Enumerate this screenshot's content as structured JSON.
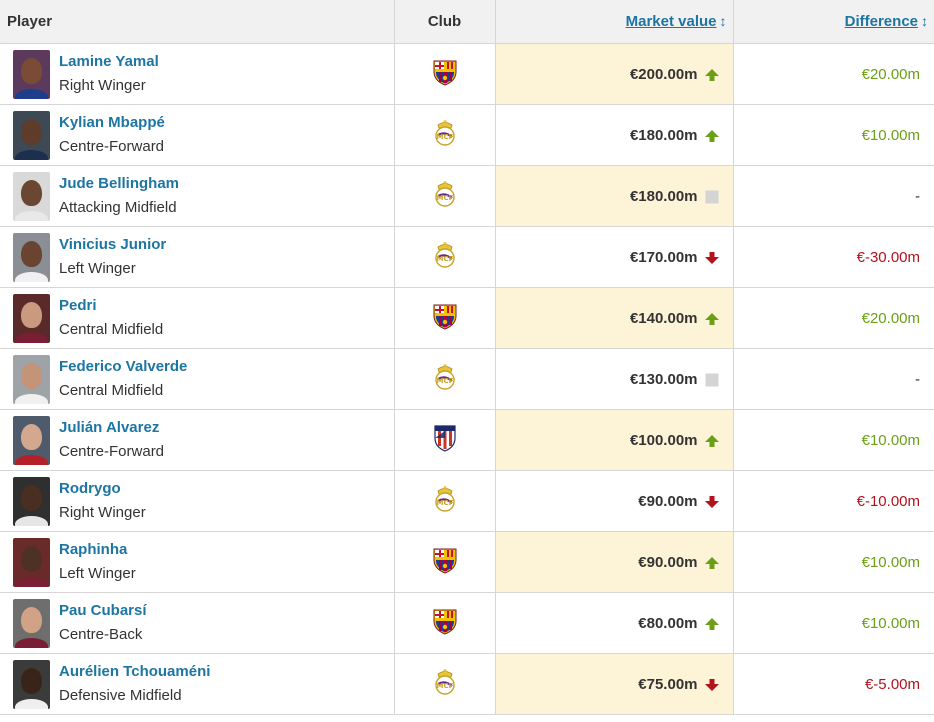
{
  "header": {
    "player": "Player",
    "club": "Club",
    "market_value": "Market value",
    "difference": "Difference",
    "sort_icon": "↕"
  },
  "colors": {
    "link": "#1d75a3",
    "positive": "#6b9f17",
    "negative": "#b3121c",
    "highlight": "#fdf4d8"
  },
  "rows": [
    {
      "name": "Lamine Yamal",
      "position": "Right Winger",
      "club": "barcelona-crest-icon",
      "value": "€200.00m",
      "trend": "up",
      "difference": "€20.00m"
    },
    {
      "name": "Kylian Mbappé",
      "position": "Centre-Forward",
      "club": "real-madrid-crest-icon",
      "value": "€180.00m",
      "trend": "up",
      "difference": "€10.00m"
    },
    {
      "name": "Jude Bellingham",
      "position": "Attacking Midfield",
      "club": "real-madrid-crest-icon",
      "value": "€180.00m",
      "trend": "same",
      "difference": "-"
    },
    {
      "name": "Vinicius Junior",
      "position": "Left Winger",
      "club": "real-madrid-crest-icon",
      "value": "€170.00m",
      "trend": "down",
      "difference": "€-30.00m"
    },
    {
      "name": "Pedri",
      "position": "Central Midfield",
      "club": "barcelona-crest-icon",
      "value": "€140.00m",
      "trend": "up",
      "difference": "€20.00m"
    },
    {
      "name": "Federico Valverde",
      "position": "Central Midfield",
      "club": "real-madrid-crest-icon",
      "value": "€130.00m",
      "trend": "same",
      "difference": "-"
    },
    {
      "name": "Julián Alvarez",
      "position": "Centre-Forward",
      "club": "atletico-madrid-crest-icon",
      "value": "€100.00m",
      "trend": "up",
      "difference": "€10.00m"
    },
    {
      "name": "Rodrygo",
      "position": "Right Winger",
      "club": "real-madrid-crest-icon",
      "value": "€90.00m",
      "trend": "down",
      "difference": "€-10.00m"
    },
    {
      "name": "Raphinha",
      "position": "Left Winger",
      "club": "barcelona-crest-icon",
      "value": "€90.00m",
      "trend": "up",
      "difference": "€10.00m"
    },
    {
      "name": "Pau Cubarsí",
      "position": "Centre-Back",
      "club": "barcelona-crest-icon",
      "value": "€80.00m",
      "trend": "up",
      "difference": "€10.00m"
    },
    {
      "name": "Aurélien Tchouaméni",
      "position": "Defensive Midfield",
      "club": "real-madrid-crest-icon",
      "value": "€75.00m",
      "trend": "down",
      "difference": "€-5.00m"
    }
  ]
}
